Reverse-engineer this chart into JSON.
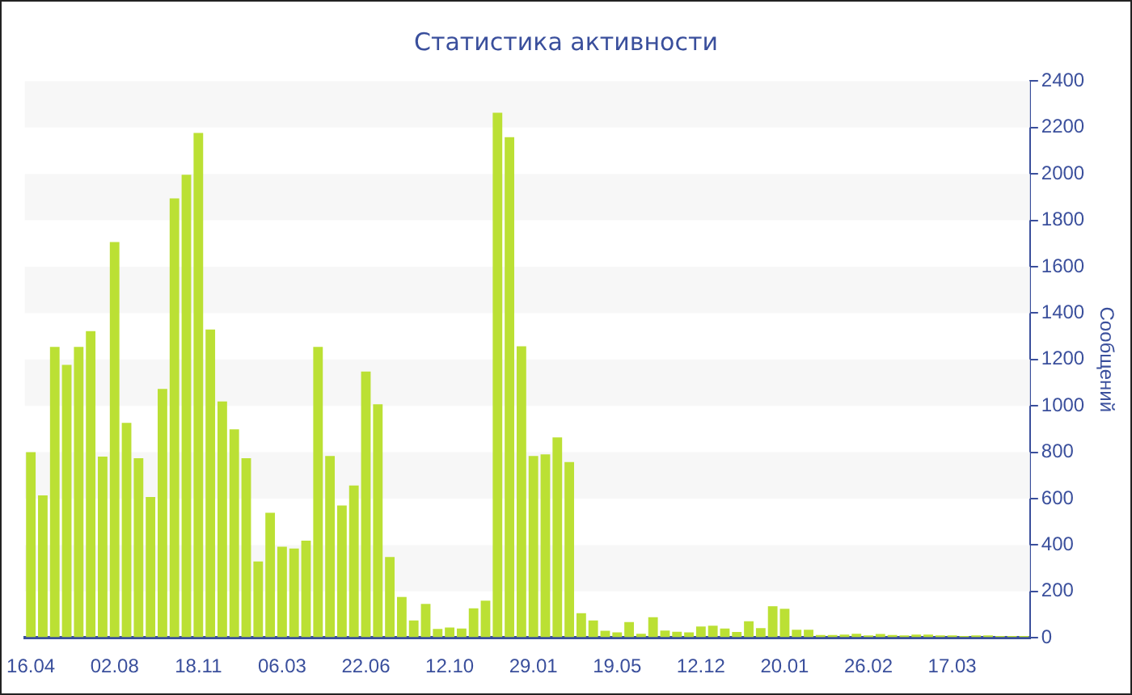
{
  "chart_data": {
    "type": "bar",
    "title": "Статистика активности",
    "ylabel": "Сообщений",
    "categories": [
      "16.04",
      null,
      null,
      null,
      null,
      null,
      null,
      "02.08",
      null,
      null,
      null,
      null,
      null,
      null,
      "18.11",
      null,
      null,
      null,
      null,
      null,
      null,
      "06.03",
      null,
      null,
      null,
      null,
      null,
      null,
      "22.06",
      null,
      null,
      null,
      null,
      null,
      null,
      "12.10",
      null,
      null,
      null,
      null,
      null,
      null,
      "29.01",
      null,
      null,
      null,
      null,
      null,
      null,
      "19.05",
      null,
      null,
      null,
      null,
      null,
      null,
      "12.12",
      null,
      null,
      null,
      null,
      null,
      null,
      "20.01",
      null,
      null,
      null,
      null,
      null,
      null,
      "26.02",
      null,
      null,
      null,
      null,
      null,
      null,
      "17.03",
      null,
      null,
      null,
      null,
      null,
      null
    ],
    "values": [
      800,
      614,
      1254,
      1177,
      1254,
      1322,
      781,
      1706,
      927,
      774,
      607,
      1073,
      1894,
      1996,
      2177,
      1329,
      1019,
      899,
      774,
      329,
      539,
      393,
      385,
      419,
      1254,
      784,
      570,
      657,
      1148,
      1007,
      348,
      176,
      75,
      146,
      38,
      44,
      40,
      127,
      160,
      2264,
      2158,
      1257,
      784,
      791,
      864,
      758,
      106,
      75,
      30,
      23,
      68,
      17,
      89,
      31,
      26,
      23,
      49,
      52,
      40,
      25,
      71,
      42,
      136,
      125,
      35,
      35,
      12,
      12,
      14,
      17,
      10,
      16,
      12,
      10,
      14,
      14,
      10,
      10,
      8,
      10,
      10,
      8,
      8,
      8
    ],
    "color": "#bbe034",
    "ylim": [
      0,
      2400
    ],
    "yticks": [
      0,
      200,
      400,
      600,
      800,
      1000,
      1200,
      1400,
      1600,
      1800,
      2000,
      2200,
      2400
    ],
    "bands": [
      {
        "axis": "y",
        "from": 200,
        "to": 400,
        "color": "#f7f7f7"
      },
      {
        "axis": "y",
        "from": 600,
        "to": 800,
        "color": "#f7f7f7"
      },
      {
        "axis": "y",
        "from": 1000,
        "to": 1200,
        "color": "#f7f7f7"
      },
      {
        "axis": "y",
        "from": 1400,
        "to": 1600,
        "color": "#f7f7f7"
      },
      {
        "axis": "y",
        "from": 1800,
        "to": 2000,
        "color": "#f7f7f7"
      },
      {
        "axis": "y",
        "from": 2200,
        "to": 2400,
        "color": "#f7f7f7"
      }
    ]
  }
}
